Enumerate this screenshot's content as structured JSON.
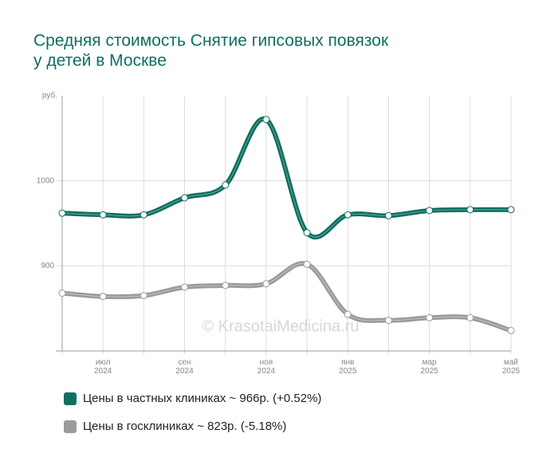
{
  "chart_data": {
    "type": "line",
    "title": [
      "Средняя стоимость Снятие гипсовых повязок",
      "у детей в Москве"
    ],
    "y_label": "руб.",
    "categories": [
      null,
      "июл 2024",
      null,
      "сен 2024",
      null,
      "ноя 2024",
      null,
      "янв 2025",
      null,
      "мар 2025",
      null,
      "май 2025"
    ],
    "series": [
      {
        "name": "Цены в частных клиниках ~ 966р. (+0.52%)",
        "color": "#0f6e62",
        "values": [
          962,
          960,
          960,
          980,
          995,
          1072,
          939,
          960,
          959,
          965,
          966,
          966
        ]
      },
      {
        "name": "Цены в госклиниках ~ 823р. (-5.18%)",
        "color": "#9b9b9b",
        "values": [
          868,
          864,
          865,
          875,
          877,
          879,
          902,
          843,
          836,
          839,
          839,
          824
        ]
      }
    ],
    "ylim": [
      800,
      1100
    ],
    "yticks": [
      900,
      1000
    ],
    "grid": true,
    "watermark": "© KrasotaiMedicina.ru"
  }
}
